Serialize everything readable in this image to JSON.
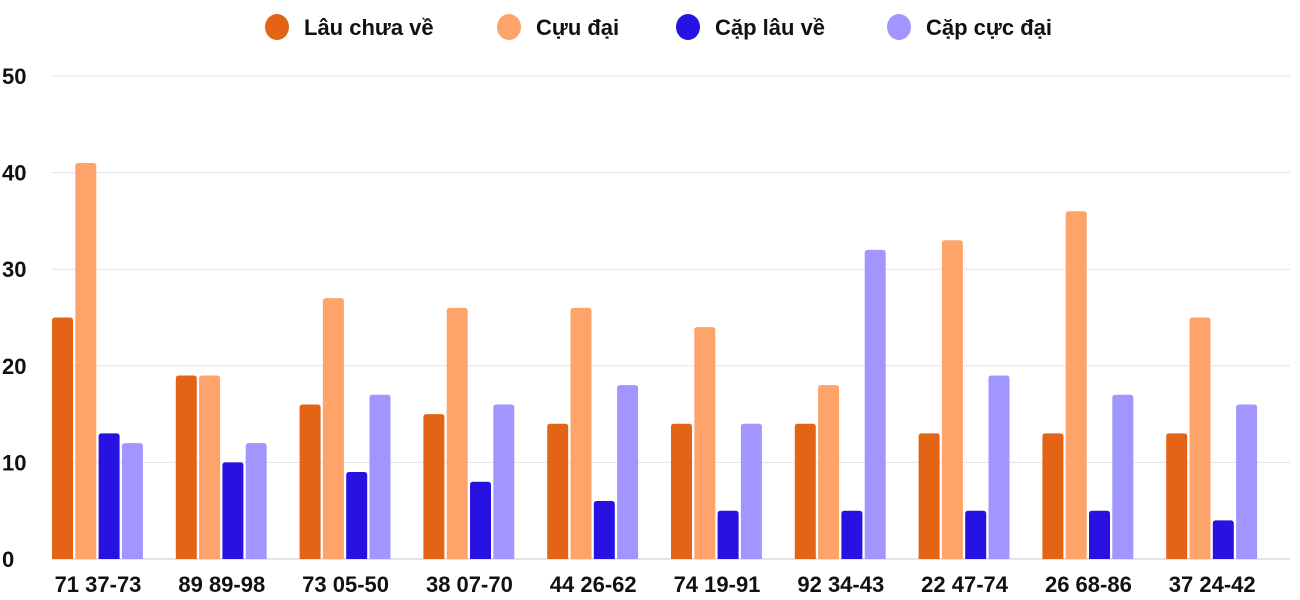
{
  "chart_data": {
    "type": "bar",
    "title": "",
    "xlabel": "",
    "ylabel": "",
    "ylim": [
      0,
      50
    ],
    "yticks": [
      0,
      10,
      20,
      30,
      40,
      50
    ],
    "grid": true,
    "legend_position": "top-center",
    "categories": [
      "71 37-73",
      "89 89-98",
      "73 05-50",
      "38 07-70",
      "44 26-62",
      "74 19-91",
      "92 34-43",
      "22 47-74",
      "26 68-86",
      "37 24-42"
    ],
    "series": [
      {
        "name": "Lâu chưa về",
        "color": "#e26414",
        "values": [
          25,
          19,
          16,
          15,
          14,
          14,
          14,
          13,
          13,
          13
        ]
      },
      {
        "name": "Cựu đại",
        "color": "#fea36a",
        "values": [
          41,
          19,
          27,
          26,
          26,
          24,
          18,
          33,
          36,
          25
        ]
      },
      {
        "name": "Cặp lâu về",
        "color": "#2712e2",
        "values": [
          13,
          10,
          9,
          8,
          6,
          5,
          5,
          5,
          5,
          4
        ]
      },
      {
        "name": "Cặp cực đại",
        "color": "#a196fd",
        "values": [
          12,
          12,
          17,
          16,
          18,
          14,
          32,
          19,
          17,
          16
        ]
      }
    ]
  }
}
